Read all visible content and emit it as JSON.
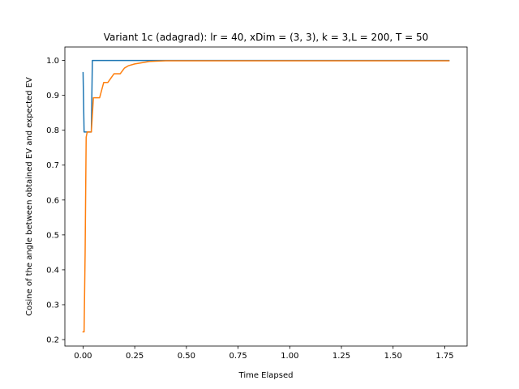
{
  "chart_data": {
    "type": "line",
    "title": "Variant 1c (adagrad): lr = 40, xDim = (3, 3), k = 3,L = 200, T = 50",
    "xlabel": "Time Elapsed",
    "ylabel": "Cosine of the angle between obtained EV and expected EV",
    "xlim": [
      -0.088,
      1.858
    ],
    "ylim": [
      0.1815,
      1.0385
    ],
    "xticks": [
      0.0,
      0.25,
      0.5,
      0.75,
      1.0,
      1.25,
      1.5,
      1.75
    ],
    "xtick_labels": [
      "0.00",
      "0.25",
      "0.50",
      "0.75",
      "1.00",
      "1.25",
      "1.50",
      "1.75"
    ],
    "yticks": [
      0.2,
      0.3,
      0.4,
      0.5,
      0.6,
      0.7,
      0.8,
      0.9,
      1.0
    ],
    "ytick_labels": [
      "0.2",
      "0.3",
      "0.4",
      "0.5",
      "0.6",
      "0.7",
      "0.8",
      "0.9",
      "1.0"
    ],
    "grid": false,
    "legend": "none",
    "series": [
      {
        "color": "#1f77b4",
        "x": [
          0.0,
          0.005,
          0.03,
          0.04,
          0.045,
          0.1,
          0.2,
          0.3,
          1.77
        ],
        "y": [
          0.965,
          0.795,
          0.795,
          0.795,
          1.0,
          1.0,
          1.0,
          1.0,
          1.0
        ]
      },
      {
        "color": "#ff7f0e",
        "x": [
          0.0,
          0.005,
          0.01,
          0.015,
          0.02,
          0.03,
          0.04,
          0.05,
          0.06,
          0.08,
          0.1,
          0.12,
          0.15,
          0.18,
          0.2,
          0.22,
          0.25,
          0.28,
          0.3,
          0.32,
          0.35,
          0.4,
          1.77
        ],
        "y": [
          0.222,
          0.222,
          0.45,
          0.78,
          0.795,
          0.795,
          0.795,
          0.893,
          0.893,
          0.893,
          0.937,
          0.937,
          0.962,
          0.962,
          0.978,
          0.985,
          0.99,
          0.993,
          0.995,
          0.997,
          0.998,
          0.999,
          0.999
        ]
      }
    ]
  }
}
